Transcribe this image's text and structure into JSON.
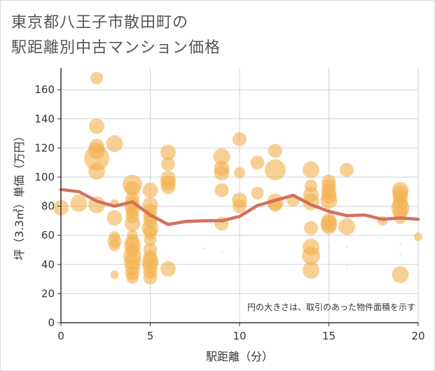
{
  "title_lines": [
    "東京都八王子市散田町の",
    "駅距離別中古マンション価格"
  ],
  "chart_data": {
    "type": "scatter",
    "title": "東京都八王子市散田町の駅距離別中古マンション価格",
    "xlabel": "駅距離（分）",
    "ylabel": "坪（3.3㎡）単価（万円）",
    "xlim": [
      0,
      20
    ],
    "ylim": [
      0,
      175
    ],
    "xticks": [
      0,
      5,
      10,
      15,
      20
    ],
    "yticks": [
      0,
      20,
      40,
      60,
      80,
      100,
      120,
      140,
      160
    ],
    "grid": true,
    "annotation": "円の大きさは、取引のあった物件面積を示す",
    "colors": {
      "bubble": "#f3b14f",
      "trend": "#d4705c",
      "grid": "#c8d3dc",
      "axis": "#333333"
    },
    "points": [
      {
        "x": 0,
        "y": 79,
        "s": 11
      },
      {
        "x": 1,
        "y": 82,
        "s": 12
      },
      {
        "x": 2,
        "y": 168,
        "s": 9
      },
      {
        "x": 2,
        "y": 135,
        "s": 11
      },
      {
        "x": 2,
        "y": 121,
        "s": 11
      },
      {
        "x": 2,
        "y": 118,
        "s": 12
      },
      {
        "x": 2,
        "y": 113,
        "s": 18
      },
      {
        "x": 2,
        "y": 104,
        "s": 12
      },
      {
        "x": 2,
        "y": 81,
        "s": 12
      },
      {
        "x": 3,
        "y": 123,
        "s": 12
      },
      {
        "x": 3,
        "y": 82,
        "s": 6
      },
      {
        "x": 3,
        "y": 72,
        "s": 11
      },
      {
        "x": 3,
        "y": 59,
        "s": 8
      },
      {
        "x": 3,
        "y": 56,
        "s": 10
      },
      {
        "x": 3,
        "y": 53,
        "s": 8
      },
      {
        "x": 3,
        "y": 33,
        "s": 6
      },
      {
        "x": 4,
        "y": 95,
        "s": 14
      },
      {
        "x": 4,
        "y": 92,
        "s": 11
      },
      {
        "x": 4,
        "y": 85,
        "s": 10
      },
      {
        "x": 4,
        "y": 82,
        "s": 10
      },
      {
        "x": 4,
        "y": 79,
        "s": 11
      },
      {
        "x": 4,
        "y": 76,
        "s": 9
      },
      {
        "x": 4,
        "y": 73,
        "s": 10
      },
      {
        "x": 4,
        "y": 68,
        "s": 11
      },
      {
        "x": 4,
        "y": 60,
        "s": 8
      },
      {
        "x": 4,
        "y": 56,
        "s": 10
      },
      {
        "x": 4,
        "y": 53,
        "s": 12
      },
      {
        "x": 4,
        "y": 50,
        "s": 10
      },
      {
        "x": 4,
        "y": 46,
        "s": 13
      },
      {
        "x": 4,
        "y": 42,
        "s": 12
      },
      {
        "x": 4,
        "y": 38,
        "s": 11
      },
      {
        "x": 4,
        "y": 34,
        "s": 10
      },
      {
        "x": 4,
        "y": 31,
        "s": 9
      },
      {
        "x": 5,
        "y": 91,
        "s": 11
      },
      {
        "x": 5,
        "y": 81,
        "s": 11
      },
      {
        "x": 5,
        "y": 77,
        "s": 10
      },
      {
        "x": 5,
        "y": 73,
        "s": 10
      },
      {
        "x": 5,
        "y": 70,
        "s": 10
      },
      {
        "x": 5,
        "y": 65,
        "s": 12
      },
      {
        "x": 5,
        "y": 62,
        "s": 10
      },
      {
        "x": 5,
        "y": 57,
        "s": 9
      },
      {
        "x": 5,
        "y": 50,
        "s": 10
      },
      {
        "x": 5,
        "y": 45,
        "s": 10
      },
      {
        "x": 5,
        "y": 42,
        "s": 12
      },
      {
        "x": 5,
        "y": 39,
        "s": 11
      },
      {
        "x": 5,
        "y": 35,
        "s": 10
      },
      {
        "x": 5,
        "y": 31,
        "s": 10
      },
      {
        "x": 6,
        "y": 117,
        "s": 11
      },
      {
        "x": 6,
        "y": 109,
        "s": 10
      },
      {
        "x": 6,
        "y": 99,
        "s": 11
      },
      {
        "x": 6,
        "y": 96,
        "s": 11
      },
      {
        "x": 6,
        "y": 93,
        "s": 10
      },
      {
        "x": 6,
        "y": 37,
        "s": 11
      },
      {
        "x": 8,
        "y": 51,
        "s": 1
      },
      {
        "x": 9,
        "y": 114,
        "s": 12
      },
      {
        "x": 9,
        "y": 106,
        "s": 11
      },
      {
        "x": 9,
        "y": 103,
        "s": 11
      },
      {
        "x": 9,
        "y": 91,
        "s": 10
      },
      {
        "x": 9,
        "y": 68,
        "s": 10
      },
      {
        "x": 9,
        "y": 48,
        "s": 1
      },
      {
        "x": 10,
        "y": 126,
        "s": 10
      },
      {
        "x": 10,
        "y": 103,
        "s": 8
      },
      {
        "x": 10,
        "y": 84,
        "s": 11
      },
      {
        "x": 10,
        "y": 80,
        "s": 10
      },
      {
        "x": 10,
        "y": 72,
        "s": 1
      },
      {
        "x": 10,
        "y": 49,
        "s": 1
      },
      {
        "x": 11,
        "y": 110,
        "s": 10
      },
      {
        "x": 11,
        "y": 89,
        "s": 9
      },
      {
        "x": 12,
        "y": 118,
        "s": 10
      },
      {
        "x": 12,
        "y": 105,
        "s": 15
      },
      {
        "x": 12,
        "y": 83,
        "s": 12
      },
      {
        "x": 12,
        "y": 81,
        "s": 10
      },
      {
        "x": 13,
        "y": 84,
        "s": 9
      },
      {
        "x": 14,
        "y": 105,
        "s": 12
      },
      {
        "x": 14,
        "y": 94,
        "s": 9
      },
      {
        "x": 14,
        "y": 88,
        "s": 11
      },
      {
        "x": 14,
        "y": 83,
        "s": 12
      },
      {
        "x": 14,
        "y": 65,
        "s": 10
      },
      {
        "x": 14,
        "y": 52,
        "s": 12
      },
      {
        "x": 14,
        "y": 46,
        "s": 13
      },
      {
        "x": 14,
        "y": 36,
        "s": 12
      },
      {
        "x": 15,
        "y": 97,
        "s": 10
      },
      {
        "x": 15,
        "y": 94,
        "s": 10
      },
      {
        "x": 15,
        "y": 90,
        "s": 11
      },
      {
        "x": 15,
        "y": 87,
        "s": 11
      },
      {
        "x": 15,
        "y": 84,
        "s": 12
      },
      {
        "x": 15,
        "y": 70,
        "s": 11
      },
      {
        "x": 15,
        "y": 68,
        "s": 12
      },
      {
        "x": 15,
        "y": 66,
        "s": 11
      },
      {
        "x": 15,
        "y": 52,
        "s": 1
      },
      {
        "x": 16,
        "y": 105,
        "s": 10
      },
      {
        "x": 16,
        "y": 66,
        "s": 12
      },
      {
        "x": 16,
        "y": 52,
        "s": 1
      },
      {
        "x": 16,
        "y": 37,
        "s": 1
      },
      {
        "x": 18,
        "y": 70,
        "s": 7
      },
      {
        "x": 19,
        "y": 91,
        "s": 12
      },
      {
        "x": 19,
        "y": 89,
        "s": 11
      },
      {
        "x": 19,
        "y": 86,
        "s": 11
      },
      {
        "x": 19,
        "y": 82,
        "s": 11
      },
      {
        "x": 19,
        "y": 79,
        "s": 13
      },
      {
        "x": 19,
        "y": 76,
        "s": 11
      },
      {
        "x": 19,
        "y": 72,
        "s": 9
      },
      {
        "x": 19,
        "y": 54,
        "s": 1
      },
      {
        "x": 19,
        "y": 47,
        "s": 1
      },
      {
        "x": 19,
        "y": 33,
        "s": 12
      },
      {
        "x": 20,
        "y": 59,
        "s": 6
      }
    ],
    "trend": [
      {
        "x": 0,
        "y": 91.5
      },
      {
        "x": 1,
        "y": 90
      },
      {
        "x": 2,
        "y": 83.5
      },
      {
        "x": 3,
        "y": 80
      },
      {
        "x": 4,
        "y": 83
      },
      {
        "x": 5,
        "y": 74
      },
      {
        "x": 6,
        "y": 67.5
      },
      {
        "x": 7,
        "y": 69.5
      },
      {
        "x": 8,
        "y": 70
      },
      {
        "x": 9,
        "y": 70
      },
      {
        "x": 10,
        "y": 73
      },
      {
        "x": 11,
        "y": 80.5
      },
      {
        "x": 12,
        "y": 84
      },
      {
        "x": 13,
        "y": 87.5
      },
      {
        "x": 14,
        "y": 81
      },
      {
        "x": 15,
        "y": 76.5
      },
      {
        "x": 16,
        "y": 73.5
      },
      {
        "x": 17,
        "y": 74
      },
      {
        "x": 18,
        "y": 71
      },
      {
        "x": 19,
        "y": 72
      },
      {
        "x": 20,
        "y": 71
      }
    ]
  }
}
